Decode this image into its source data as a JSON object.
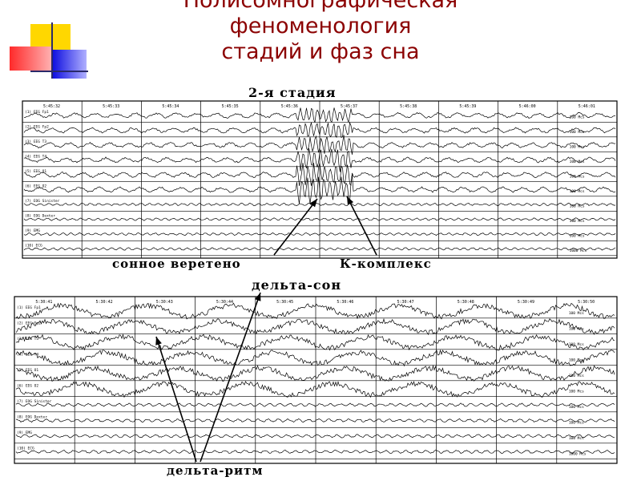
{
  "slide": {
    "title_lines": [
      "Полисомнографическая",
      "феноменология",
      "стадий и фаз сна"
    ]
  },
  "panel_top": {
    "heading": "2-я стадия",
    "times": [
      "5:45:32",
      "5:45:33",
      "5:45:34",
      "5:45:35",
      "5:45:36",
      "5:45:37",
      "5:45:38",
      "5:45:39",
      "5:46:00",
      "5:46:01"
    ],
    "channels": [
      "(1) EEG Fp1",
      "(2) EEG Fp2",
      "(3) EEG T3",
      "(4) EEG T4",
      "(5) EEG O1",
      "(6) EEG O2",
      "(7) EOG Sinister",
      "(8) EOG Dexter",
      "(9) EMG",
      "(10) ECG"
    ],
    "scale_labels": [
      "100 Mcs",
      "100 Mcs",
      "100 Mcs",
      "100 Mcs",
      "100 Mcs",
      "100 Mcs",
      "100 Mcs",
      "100 Mcs",
      "100 Mcs",
      "1000 Mcs"
    ],
    "annotations": {
      "spindle": "сонное веретено",
      "kcomplex": "К-комплекс"
    }
  },
  "panel_bottom": {
    "heading": "дельта-сон",
    "times": [
      "5:30:41",
      "5:30:42",
      "5:30:43",
      "5:30:44",
      "5:30:45",
      "5:30:46",
      "5:30:47",
      "5:30:48",
      "5:30:49",
      "5:30:50"
    ],
    "channels": [
      "(1) EEG Fp1",
      "(2) EEG Fp2",
      "(3) EEG T3",
      "(4) EEG T4",
      "(5) EEG O1",
      "(6) EEG O2",
      "(7) EOG Sinister",
      "(8) EOG Dexter",
      "(9) EMG",
      "(10) ECG"
    ],
    "scale_labels": [
      "100 Mcs",
      "100 Mcs",
      "100 Mcs",
      "100 Mcs",
      "100 Mcs",
      "100 Mcs",
      "100 Mcs",
      "100 Mcs",
      "100 Mcs",
      "1000 Mcs"
    ],
    "annotations": {
      "delta": "дельта-ритм"
    }
  },
  "colors": {
    "title": "#8b0000",
    "deco_yellow": "#ffd700",
    "deco_red": "#ff3b3b",
    "deco_blue": "#1414e6"
  }
}
